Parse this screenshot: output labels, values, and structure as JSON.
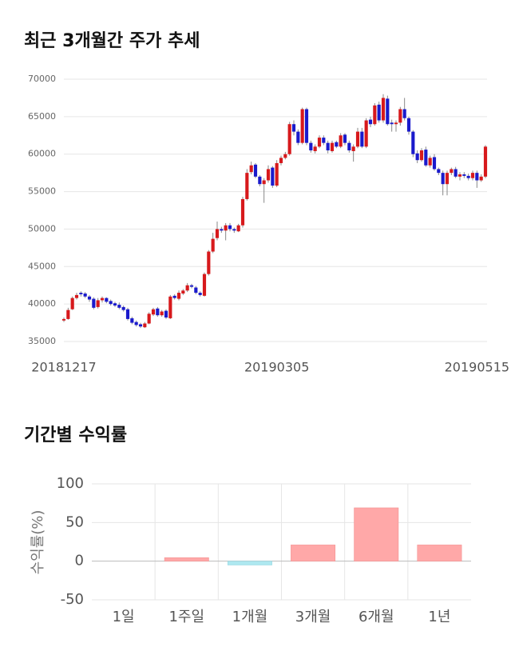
{
  "chart_data": [
    {
      "type": "candlestick",
      "title": "최근 3개월간 주가 추세",
      "categories": [
        "20181217",
        null,
        null,
        null,
        null,
        null,
        null,
        null,
        null,
        null,
        null,
        null,
        null,
        null,
        null,
        null,
        null,
        null,
        null,
        null,
        null,
        null,
        null,
        null,
        null,
        null,
        null,
        null,
        null,
        null,
        null,
        null,
        null,
        null,
        null,
        null,
        null,
        null,
        null,
        null,
        null,
        null,
        null,
        null,
        null,
        null,
        null,
        null,
        null,
        null,
        "20190305",
        null,
        null,
        null,
        null,
        null,
        null,
        null,
        null,
        null,
        null,
        null,
        null,
        null,
        null,
        null,
        null,
        null,
        null,
        null,
        null,
        null,
        null,
        null,
        null,
        null,
        null,
        null,
        null,
        null,
        null,
        null,
        null,
        null,
        null,
        null,
        null,
        null,
        null,
        null,
        null,
        null,
        null,
        null,
        null,
        null,
        null,
        "20190515",
        null,
        null
      ],
      "open": [
        37800,
        38000,
        39300,
        40800,
        41500,
        41400,
        41000,
        40700,
        39600,
        40500,
        40800,
        40400,
        40100,
        39900,
        39600,
        39300,
        38100,
        37600,
        37300,
        36900,
        37400,
        38600,
        39400,
        38500,
        39100,
        38100,
        41100,
        40700,
        41400,
        41800,
        42500,
        42200,
        41500,
        41100,
        44000,
        47000,
        48800,
        50000,
        49800,
        50500,
        50000,
        49700,
        50500,
        54000,
        57600,
        58600,
        57000,
        56000,
        56500,
        58200,
        55800,
        58800,
        59500,
        60000,
        64000,
        63000,
        61500,
        66000,
        61500,
        60400,
        61000,
        62200,
        61500,
        60400,
        61600,
        61000,
        62600,
        61500,
        60400,
        61000,
        63000,
        61000,
        64600,
        64000,
        66600,
        64500,
        67400,
        64200,
        64000,
        64200,
        66000,
        64800,
        63000,
        60100,
        59200,
        60600,
        58500,
        59600,
        58000,
        57500,
        56000,
        57500,
        58000,
        57000,
        57300,
        57100,
        56800,
        57500,
        56500,
        57000
      ],
      "high": [
        38200,
        39500,
        41000,
        41500,
        41700,
        41600,
        41200,
        40900,
        40800,
        41000,
        40900,
        40600,
        40300,
        40200,
        39800,
        39500,
        38300,
        37800,
        37500,
        37600,
        38900,
        39500,
        39600,
        39200,
        39300,
        41200,
        41300,
        41800,
        42000,
        42800,
        42700,
        42400,
        41700,
        44200,
        47200,
        49500,
        51000,
        50300,
        50800,
        50800,
        50200,
        50700,
        54300,
        58000,
        59000,
        58800,
        57200,
        56800,
        58500,
        58400,
        59200,
        59800,
        60300,
        64300,
        64500,
        63300,
        66200,
        66200,
        61800,
        61300,
        62500,
        62500,
        61800,
        61800,
        61800,
        62800,
        62800,
        61800,
        61300,
        63500,
        63500,
        64800,
        65000,
        66800,
        67000,
        68000,
        67800,
        64600,
        64500,
        66300,
        67500,
        65000,
        63200,
        60500,
        60800,
        61000,
        59800,
        60000,
        58200,
        57800,
        57800,
        58200,
        58300,
        57600,
        57600,
        57400,
        57800,
        57800,
        57300,
        61200
      ],
      "low": [
        37600,
        37900,
        39200,
        40600,
        41000,
        40800,
        40300,
        39300,
        39400,
        40200,
        40100,
        39800,
        39600,
        39300,
        39000,
        37800,
        37300,
        37000,
        36800,
        36800,
        37300,
        38400,
        38300,
        38300,
        38000,
        38000,
        40600,
        40500,
        41200,
        41600,
        42100,
        41300,
        41000,
        41000,
        43800,
        46800,
        48500,
        49500,
        48500,
        49700,
        49500,
        49600,
        50200,
        53800,
        57300,
        56800,
        55700,
        53500,
        56200,
        55500,
        55600,
        58500,
        59300,
        59800,
        62500,
        61200,
        61300,
        61200,
        60200,
        60100,
        60800,
        61200,
        60100,
        60200,
        60800,
        60800,
        61200,
        60200,
        59000,
        60800,
        60800,
        60800,
        63600,
        63800,
        64200,
        64200,
        63800,
        63000,
        63000,
        63800,
        64500,
        62600,
        59600,
        58800,
        59000,
        58300,
        58200,
        57800,
        57200,
        54500,
        54500,
        57200,
        56800,
        56500,
        56800,
        56500,
        56500,
        55500,
        56300,
        56800
      ],
      "close": [
        38000,
        39200,
        40800,
        41200,
        41300,
        41000,
        40600,
        39500,
        40500,
        40800,
        40300,
        40000,
        39800,
        39500,
        39200,
        38000,
        37500,
        37200,
        37000,
        37400,
        38700,
        39300,
        38500,
        39000,
        38200,
        41000,
        40800,
        41500,
        41800,
        42500,
        42300,
        41500,
        41200,
        44000,
        47000,
        48700,
        50000,
        49800,
        50500,
        50000,
        49800,
        50500,
        54000,
        57500,
        58500,
        57000,
        56000,
        56500,
        58000,
        55800,
        58800,
        59500,
        60000,
        64000,
        63000,
        61500,
        66000,
        61500,
        60500,
        61000,
        62200,
        61500,
        60500,
        61500,
        61000,
        62500,
        61500,
        60500,
        61000,
        63000,
        61000,
        64500,
        64000,
        66500,
        64500,
        67500,
        64000,
        64000,
        64200,
        66000,
        64800,
        63000,
        60000,
        59200,
        60500,
        58500,
        59500,
        58000,
        57500,
        56000,
        57500,
        58000,
        57000,
        57300,
        57100,
        56800,
        57500,
        56500,
        57000,
        61000
      ],
      "up_color": "#d7191c",
      "down_color": "#1a1acc",
      "ylim": [
        35000,
        70000
      ],
      "yticks": [
        35000,
        40000,
        45000,
        50000,
        55000,
        60000,
        65000,
        70000
      ],
      "grid": true
    },
    {
      "type": "bar",
      "title": "기간별 수익률",
      "y_label": "수익률(%)",
      "categories": [
        "1일",
        "1주일",
        "1개월",
        "3개월",
        "6개월",
        "1년"
      ],
      "values": [
        0,
        4.5,
        -5,
        21,
        69,
        21
      ],
      "positive_color": "#ffa8a8",
      "negative_color": "#aee8f0",
      "ylim": [
        -50,
        100
      ],
      "yticks": [
        -50,
        0,
        50,
        100
      ],
      "grid": true
    }
  ]
}
